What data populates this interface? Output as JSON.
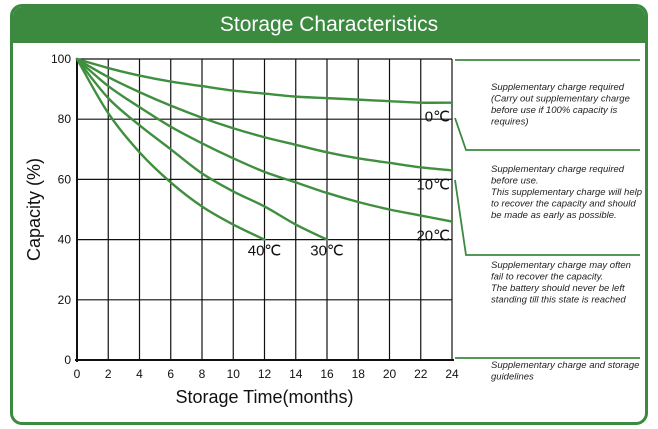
{
  "colors": {
    "accent": "#3b8a3f",
    "curve": "#3f8f3f",
    "grid": "#111111"
  },
  "chart_data": {
    "type": "line",
    "title": "Storage Characteristics",
    "xlabel": "Storage  Time(months)",
    "ylabel": "Capacity  (%)",
    "xlim": [
      0,
      24
    ],
    "ylim": [
      0,
      100
    ],
    "xticks": [
      "0",
      "2",
      "4",
      "6",
      "8",
      "10",
      "12",
      "14",
      "16",
      "18",
      "20",
      "22",
      "24"
    ],
    "yticks": [
      "0",
      "20",
      "40",
      "60",
      "80",
      "100"
    ],
    "grid": true,
    "series": [
      {
        "name": "0℃",
        "x": [
          0,
          2,
          4,
          6,
          8,
          10,
          12,
          14,
          16,
          18,
          20,
          22,
          24
        ],
        "y": [
          100,
          97,
          94.5,
          92.5,
          91,
          89.5,
          88.5,
          87.5,
          87,
          86.5,
          86,
          85.5,
          85.5
        ]
      },
      {
        "name": "10℃",
        "x": [
          0,
          2,
          4,
          6,
          8,
          10,
          12,
          14,
          16,
          18,
          20,
          22,
          24
        ],
        "y": [
          100,
          94,
          89,
          84.5,
          80.5,
          77,
          74,
          71.5,
          69,
          67,
          65.5,
          64,
          63
        ]
      },
      {
        "name": "20℃",
        "x": [
          0,
          2,
          4,
          6,
          8,
          10,
          12,
          14,
          16,
          18,
          20,
          22,
          24
        ],
        "y": [
          100,
          91,
          84,
          77.5,
          72,
          67,
          62.5,
          59,
          55.5,
          52.5,
          50,
          48,
          46
        ]
      },
      {
        "name": "30℃",
        "x": [
          0,
          2,
          4,
          6,
          8,
          10,
          12,
          14,
          16
        ],
        "y": [
          100,
          87,
          78,
          70,
          62,
          56,
          51,
          45,
          40
        ]
      },
      {
        "name": "40℃",
        "x": [
          0,
          2,
          4,
          6,
          8,
          10,
          12
        ],
        "y": [
          100,
          82,
          69,
          59,
          51,
          45,
          40
        ]
      }
    ],
    "annotations": [
      {
        "lines": [
          "Supplementary charge required",
          "(Carry out supplementary charge",
          "before use if 100% capacity is",
          "requires)"
        ]
      },
      {
        "lines": [
          "Supplementary charge required",
          "before use.",
          "This supplementary charge will help",
          "to recover the capacity and should",
          "be made  as early as possible."
        ]
      },
      {
        "lines": [
          "Supplementary charge may often",
          "fail to recover the capacity.",
          "The battery should never be left",
          "standing till this state is reached"
        ]
      },
      {
        "lines": [
          "Supplementary charge and storage",
          "guidelines"
        ]
      }
    ]
  }
}
